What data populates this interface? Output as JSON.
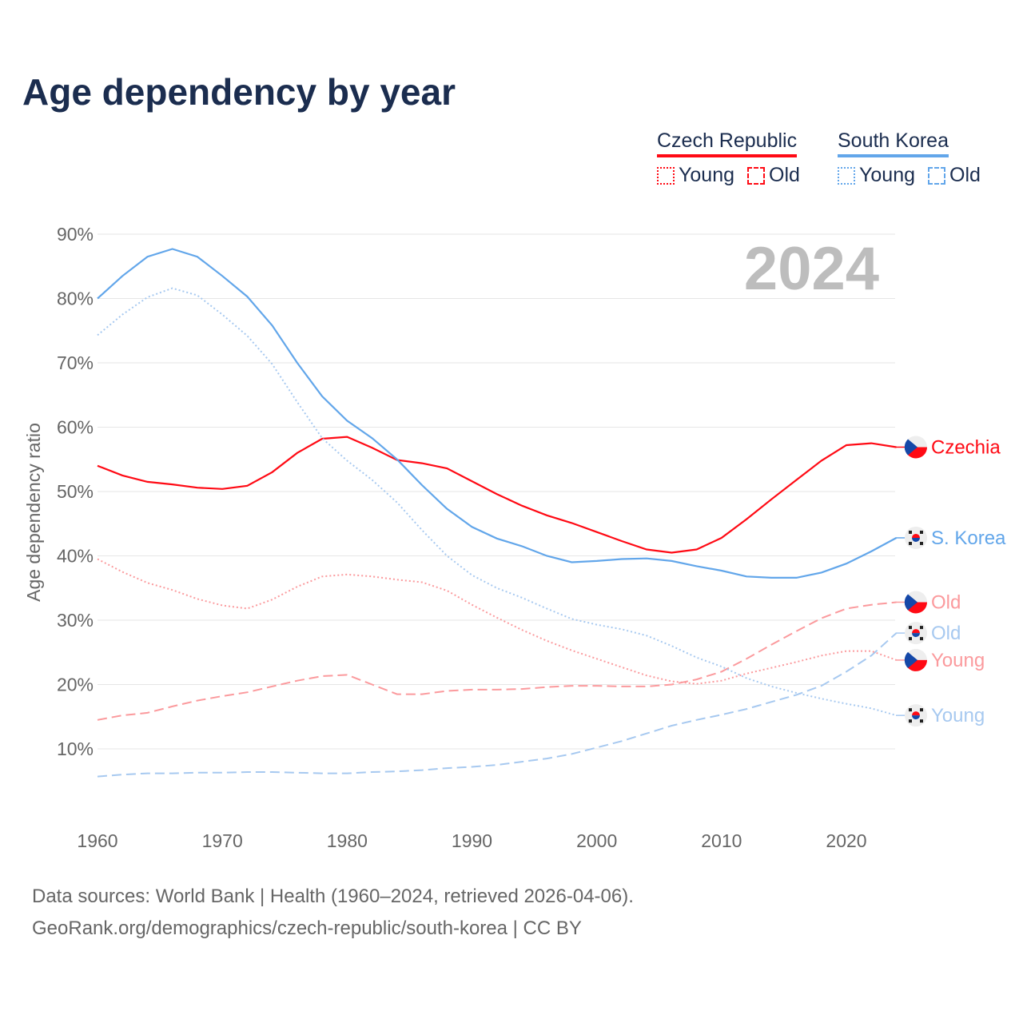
{
  "title": "Age dependency by year",
  "legend": {
    "groups": [
      {
        "name": "Czech Republic",
        "color": "#ff0a14",
        "items": [
          {
            "label": "Young",
            "style": "dotted"
          },
          {
            "label": "Old",
            "style": "dashed"
          }
        ]
      },
      {
        "name": "South Korea",
        "color": "#62a6ea",
        "items": [
          {
            "label": "Young",
            "style": "dotted"
          },
          {
            "label": "Old",
            "style": "dashed"
          }
        ]
      }
    ]
  },
  "footer": {
    "line1": "Data sources: World Bank | Health (1960–2024, retrieved 2026-04-06).",
    "line2": "GeoRank.org/demographics/czech-republic/south-korea | CC BY"
  },
  "chart_data": {
    "type": "line",
    "title": "Age dependency by year",
    "year_watermark": "2024",
    "xlabel": "",
    "ylabel": "Age dependency ratio",
    "xlim": [
      1960,
      2024
    ],
    "ylim": [
      0,
      90
    ],
    "x_ticks": [
      "1960",
      "1970",
      "1980",
      "1990",
      "2000",
      "2010",
      "2020"
    ],
    "y_ticks": [
      "10%",
      "20%",
      "30%",
      "40%",
      "50%",
      "60%",
      "70%",
      "80%",
      "90%"
    ],
    "grid": true,
    "x": [
      1960,
      1962,
      1964,
      1966,
      1968,
      1970,
      1972,
      1974,
      1976,
      1978,
      1980,
      1982,
      1984,
      1986,
      1988,
      1990,
      1992,
      1994,
      1996,
      1998,
      2000,
      2002,
      2004,
      2006,
      2008,
      2010,
      2012,
      2014,
      2016,
      2018,
      2020,
      2022,
      2024
    ],
    "series": [
      {
        "name": "Czech Republic total",
        "end_label": "Czechia",
        "flag": "cz",
        "color": "#ff0a14",
        "style": "solid",
        "values": [
          54,
          52.5,
          51.5,
          51.1,
          50.6,
          50.4,
          50.9,
          53,
          56,
          58.2,
          58.5,
          56.8,
          54.9,
          54.4,
          53.6,
          51.6,
          49.6,
          47.8,
          46.3,
          45.1,
          43.7,
          42.3,
          41,
          40.5,
          41,
          42.8,
          45.7,
          48.8,
          51.8,
          54.8,
          57.2,
          57.5,
          56.9
        ]
      },
      {
        "name": "South Korea total",
        "end_label": "S. Korea",
        "flag": "kr",
        "color": "#62a6ea",
        "style": "solid",
        "values": [
          80,
          83.5,
          86.5,
          87.7,
          86.5,
          83.5,
          80.3,
          75.8,
          70,
          64.8,
          61,
          58.3,
          55,
          51,
          47.3,
          44.5,
          42.7,
          41.5,
          40,
          39,
          39.2,
          39.5,
          39.6,
          39.2,
          38.4,
          37.7,
          36.8,
          36.6,
          36.6,
          37.4,
          38.8,
          40.7,
          42.8
        ]
      },
      {
        "name": "Czech Republic old",
        "end_label": "Old",
        "flag": "cz",
        "color": "#fb9a9d",
        "style": "dashed",
        "values": [
          14.5,
          15.2,
          15.6,
          16.6,
          17.5,
          18.2,
          18.8,
          19.7,
          20.6,
          21.3,
          21.5,
          20,
          18.5,
          18.5,
          19,
          19.2,
          19.2,
          19.3,
          19.6,
          19.8,
          19.8,
          19.7,
          19.7,
          20,
          20.8,
          22,
          24,
          26.2,
          28.3,
          30.3,
          31.8,
          32.4,
          32.8
        ]
      },
      {
        "name": "South Korea old",
        "end_label": "Old",
        "flag": "kr",
        "color": "#a7c9f0",
        "style": "dashed",
        "values": [
          5.7,
          6,
          6.2,
          6.2,
          6.3,
          6.3,
          6.4,
          6.4,
          6.3,
          6.2,
          6.2,
          6.4,
          6.5,
          6.7,
          7,
          7.2,
          7.5,
          8,
          8.5,
          9.2,
          10.2,
          11.2,
          12.4,
          13.6,
          14.5,
          15.3,
          16.2,
          17.3,
          18.4,
          19.8,
          22,
          24.5,
          28
        ]
      },
      {
        "name": "Czech Republic young",
        "end_label": "Young",
        "flag": "cz",
        "color": "#fb9a9d",
        "style": "dotted",
        "values": [
          39.5,
          37.5,
          35.8,
          34.7,
          33.3,
          32.3,
          31.8,
          33.2,
          35.2,
          36.8,
          37.1,
          36.8,
          36.3,
          35.9,
          34.6,
          32.4,
          30.4,
          28.5,
          26.8,
          25.3,
          24,
          22.7,
          21.4,
          20.5,
          20.1,
          20.6,
          21.7,
          22.6,
          23.5,
          24.5,
          25.2,
          25.2,
          23.8
        ]
      },
      {
        "name": "South Korea young",
        "end_label": "Young",
        "flag": "kr",
        "color": "#a7c9f0",
        "style": "dotted",
        "values": [
          74.3,
          77.5,
          80.2,
          81.6,
          80.5,
          77.5,
          74.2,
          69.8,
          63.9,
          58.3,
          54.8,
          51.8,
          48.3,
          44,
          40,
          37,
          35,
          33.5,
          31.8,
          30.2,
          29.3,
          28.6,
          27.6,
          26,
          24.2,
          22.8,
          21,
          19.7,
          18.7,
          17.8,
          17,
          16.3,
          15.2
        ]
      }
    ]
  }
}
